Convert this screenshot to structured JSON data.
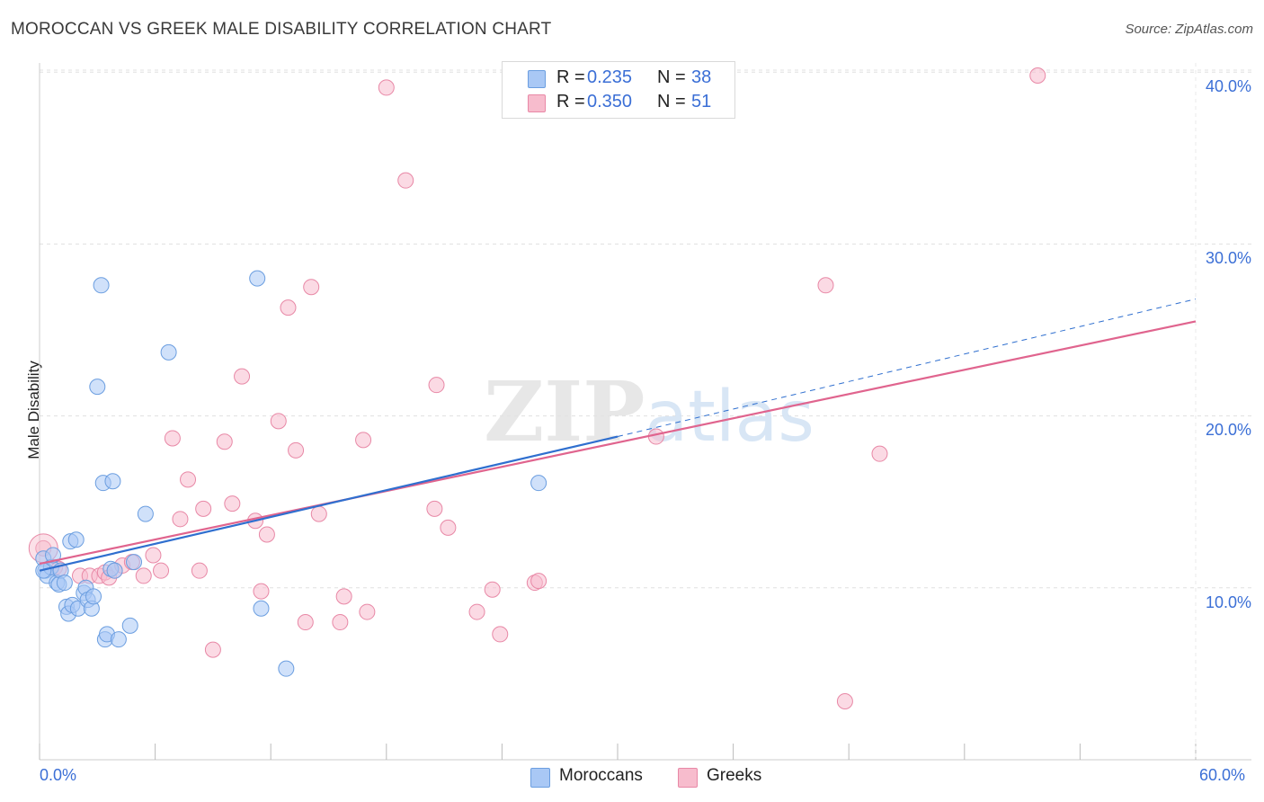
{
  "title": "MOROCCAN VS GREEK MALE DISABILITY CORRELATION CHART",
  "source": "Source: ZipAtlas.com",
  "watermark": "ZIPatlas",
  "colors": {
    "moroccans_fill": "#a9c8f5",
    "moroccans_stroke": "#6b9ee0",
    "moroccans_line": "#2f6fcf",
    "greeks_fill": "#f7bccd",
    "greeks_stroke": "#e888a6",
    "greeks_line": "#e0648e",
    "axis_text": "#3b6fd6",
    "grid": "#e0e0e0"
  },
  "legend_top": {
    "rows": [
      {
        "r_label": "R =",
        "r_value": "0.235",
        "n_label": "N =",
        "n_value": "38"
      },
      {
        "r_label": "R =",
        "r_value": "0.350",
        "n_label": "N =",
        "n_value": "51"
      }
    ]
  },
  "legend_bottom": [
    "Moroccans",
    "Greeks"
  ],
  "chart_data": {
    "type": "scatter",
    "title": "MOROCCAN VS GREEK MALE DISABILITY CORRELATION CHART",
    "xlabel": "",
    "ylabel": "Male Disability",
    "xlim": [
      0,
      60
    ],
    "ylim": [
      0,
      40
    ],
    "x_tick_labels": [
      "0.0%",
      "60.0%"
    ],
    "y_ticks": [
      10,
      20,
      30,
      40
    ],
    "y_tick_labels": [
      "10.0%",
      "20.0%",
      "30.0%",
      "40.0%"
    ],
    "grid": true,
    "series": [
      {
        "name": "Moroccans",
        "r": 0.235,
        "n": 38,
        "trend": {
          "x0": 0,
          "y0": 11.0,
          "x1": 30,
          "y1": 18.8,
          "dashed_to_x": 60,
          "dashed_to_y": 26.8
        },
        "points": [
          [
            0.2,
            11.7
          ],
          [
            0.3,
            11.0
          ],
          [
            0.4,
            10.7
          ],
          [
            0.6,
            11.2
          ],
          [
            0.7,
            11.9
          ],
          [
            0.9,
            10.3
          ],
          [
            1.0,
            10.2
          ],
          [
            1.1,
            11.0
          ],
          [
            1.3,
            10.3
          ],
          [
            1.4,
            8.9
          ],
          [
            1.5,
            8.5
          ],
          [
            1.6,
            12.7
          ],
          [
            1.7,
            9.0
          ],
          [
            1.9,
            12.8
          ],
          [
            2.0,
            8.8
          ],
          [
            2.3,
            9.7
          ],
          [
            2.4,
            10.0
          ],
          [
            2.5,
            9.3
          ],
          [
            2.7,
            8.8
          ],
          [
            2.8,
            9.5
          ],
          [
            3.2,
            27.6
          ],
          [
            3.0,
            21.7
          ],
          [
            3.3,
            16.1
          ],
          [
            3.4,
            7.0
          ],
          [
            3.5,
            7.3
          ],
          [
            3.8,
            16.2
          ],
          [
            3.7,
            11.1
          ],
          [
            4.1,
            7.0
          ],
          [
            4.7,
            7.8
          ],
          [
            4.9,
            11.5
          ],
          [
            5.5,
            14.3
          ],
          [
            6.7,
            23.7
          ],
          [
            11.3,
            28.0
          ],
          [
            11.5,
            8.8
          ],
          [
            12.8,
            5.3
          ],
          [
            25.9,
            16.1
          ],
          [
            0.2,
            11.0
          ],
          [
            3.9,
            11.0
          ]
        ]
      },
      {
        "name": "Greeks",
        "r": 0.35,
        "n": 51,
        "trend": {
          "x0": 0,
          "y0": 11.4,
          "x1": 60,
          "y1": 25.5
        },
        "points": [
          [
            0.2,
            12.3
          ],
          [
            0.8,
            11.2
          ],
          [
            1.0,
            11.1
          ],
          [
            2.1,
            10.7
          ],
          [
            2.6,
            10.7
          ],
          [
            3.1,
            10.7
          ],
          [
            3.4,
            10.9
          ],
          [
            3.6,
            10.6
          ],
          [
            3.9,
            11.0
          ],
          [
            4.3,
            11.3
          ],
          [
            4.8,
            11.5
          ],
          [
            5.4,
            10.7
          ],
          [
            5.9,
            11.9
          ],
          [
            6.3,
            11.0
          ],
          [
            6.9,
            18.7
          ],
          [
            7.3,
            14.0
          ],
          [
            7.7,
            16.3
          ],
          [
            8.3,
            11.0
          ],
          [
            8.5,
            14.6
          ],
          [
            9.0,
            6.4
          ],
          [
            9.6,
            18.5
          ],
          [
            10.0,
            14.9
          ],
          [
            10.5,
            22.3
          ],
          [
            11.2,
            13.9
          ],
          [
            11.5,
            9.8
          ],
          [
            11.8,
            13.1
          ],
          [
            12.4,
            19.7
          ],
          [
            12.9,
            26.3
          ],
          [
            13.3,
            18.0
          ],
          [
            13.8,
            8.0
          ],
          [
            14.1,
            27.5
          ],
          [
            14.5,
            14.3
          ],
          [
            15.6,
            8.0
          ],
          [
            15.8,
            9.5
          ],
          [
            16.8,
            18.6
          ],
          [
            17.0,
            8.6
          ],
          [
            18.0,
            39.1
          ],
          [
            19.0,
            33.7
          ],
          [
            20.5,
            14.6
          ],
          [
            20.6,
            21.8
          ],
          [
            21.2,
            13.5
          ],
          [
            22.7,
            8.6
          ],
          [
            23.5,
            9.9
          ],
          [
            23.9,
            7.3
          ],
          [
            25.7,
            10.3
          ],
          [
            25.9,
            10.4
          ],
          [
            32.0,
            18.8
          ],
          [
            40.8,
            27.6
          ],
          [
            41.8,
            3.4
          ],
          [
            43.6,
            17.8
          ],
          [
            51.8,
            39.8
          ]
        ]
      }
    ]
  }
}
